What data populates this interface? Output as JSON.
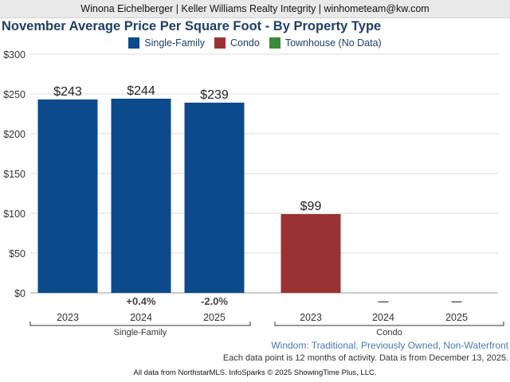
{
  "header": {
    "agent_line": "Winona Eichelberger | Keller Williams Realty Integrity | winhometeam@kw.com"
  },
  "colors": {
    "single_family": "#0d4a8c",
    "condo": "#993333",
    "townhouse": "#3a8a3a",
    "title": "#1e3f66"
  },
  "legend": [
    {
      "label": "Single-Family",
      "color": "#0d4a8c"
    },
    {
      "label": "Condo",
      "color": "#993333"
    },
    {
      "label": "Townhouse (No Data)",
      "color": "#3a8a3a"
    }
  ],
  "chart_data": {
    "type": "bar",
    "title": "November Average Price Per Square Foot - By Property Type",
    "ylim": [
      0,
      300
    ],
    "yticks": [
      0,
      50,
      100,
      150,
      200,
      250,
      300
    ],
    "ytick_labels": [
      "$0",
      "$50",
      "$100",
      "$150",
      "$200",
      "$250",
      "$300"
    ],
    "grid": true,
    "legend_position": "top",
    "groups": [
      {
        "name": "Single-Family",
        "color": "#0d4a8c",
        "bars": [
          {
            "x": "2023",
            "value": 243,
            "label": "$243",
            "change": ""
          },
          {
            "x": "2024",
            "value": 244,
            "label": "$244",
            "change": "+0.4%"
          },
          {
            "x": "2025",
            "value": 239,
            "label": "$239",
            "change": "-2.0%"
          }
        ]
      },
      {
        "name": "Condo",
        "color": "#993333",
        "bars": [
          {
            "x": "2023",
            "value": 99,
            "label": "$99",
            "change": ""
          },
          {
            "x": "2024",
            "value": null,
            "label": "",
            "change": "—"
          },
          {
            "x": "2025",
            "value": null,
            "label": "",
            "change": "—"
          }
        ]
      }
    ]
  },
  "footer": {
    "subtitle": "Windom: Traditional, Previously Owned, Non-Waterfront",
    "note": "Each data point is 12 months of activity. Data is from December 13, 2025.",
    "credit": "All data from NorthstarMLS. InfoSparks © 2025 ShowingTime Plus, LLC."
  }
}
